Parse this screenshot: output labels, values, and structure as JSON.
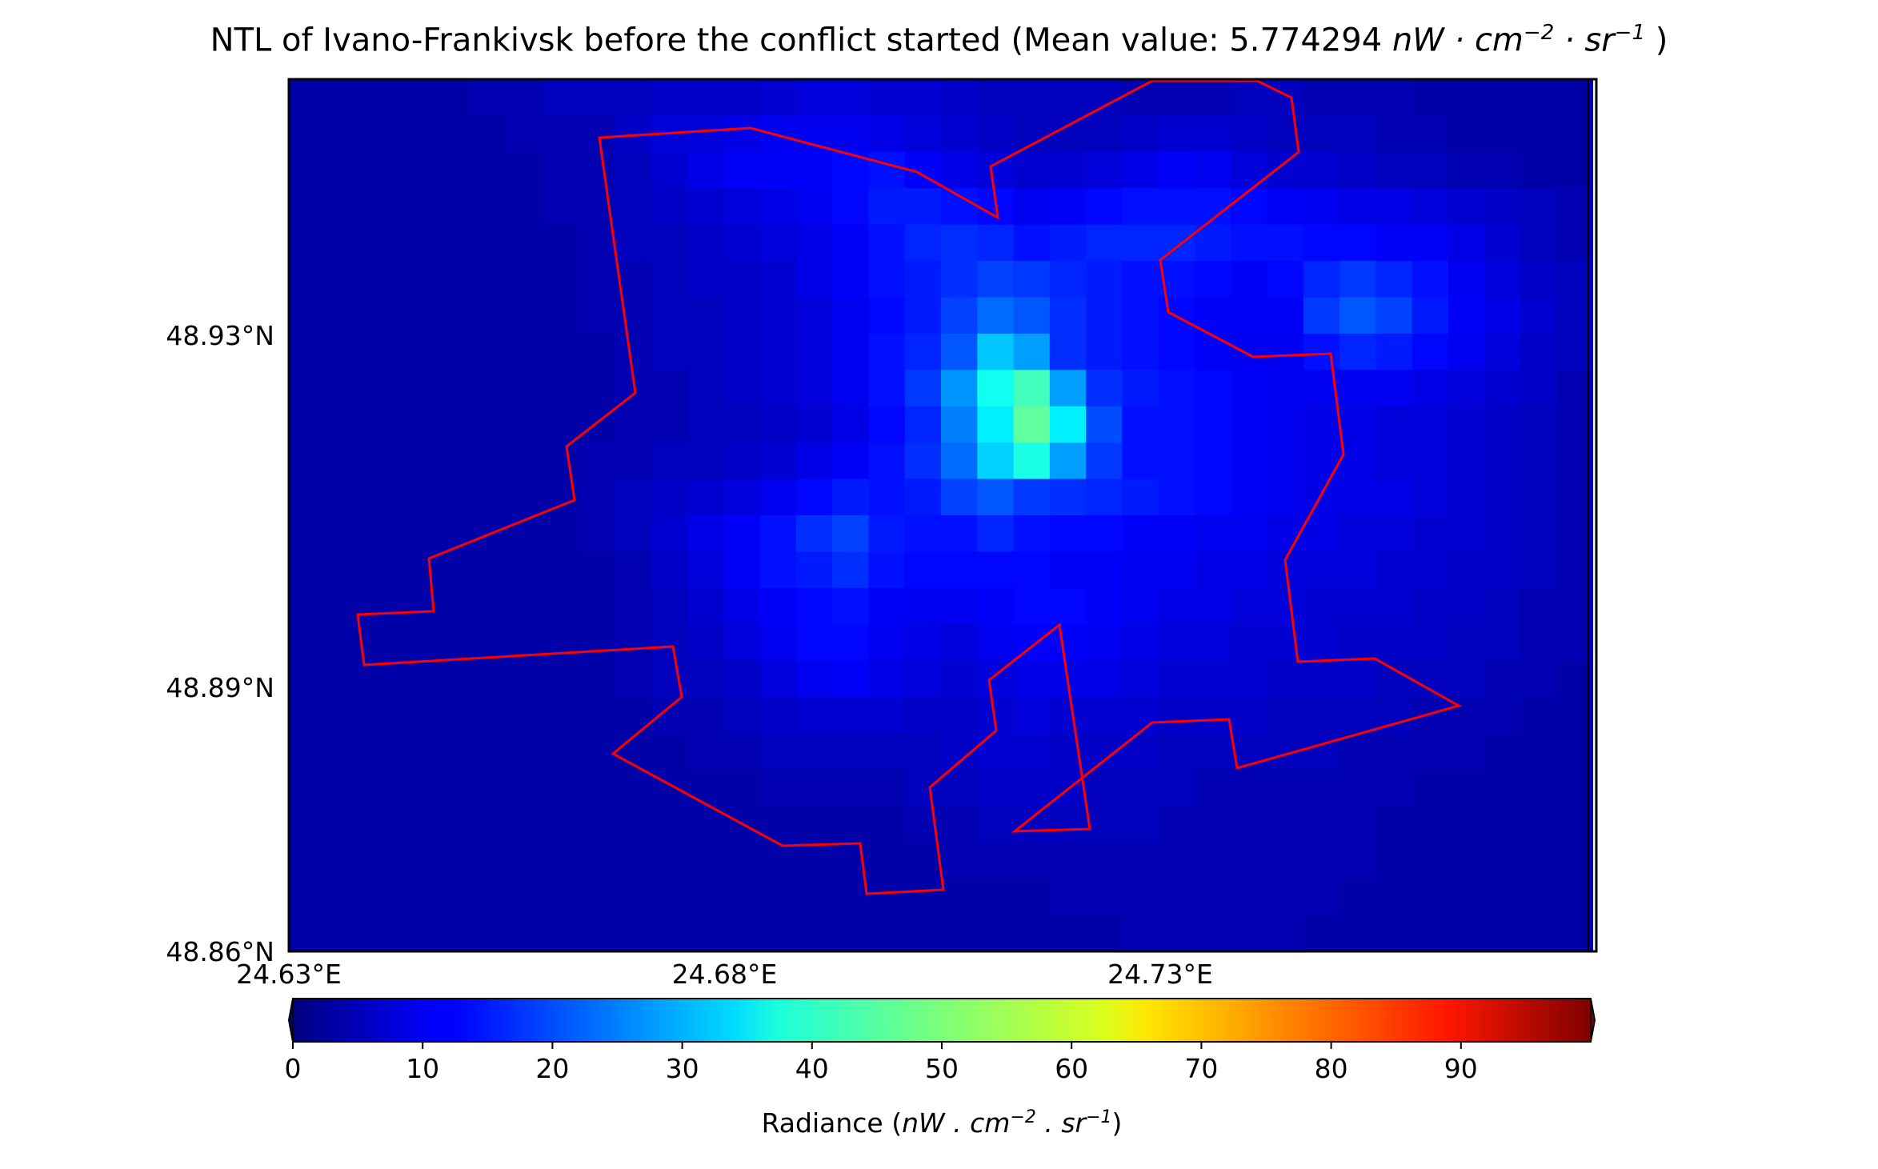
{
  "chart_data": {
    "type": "heatmap",
    "title_prefix": "NTL of Ivano-Frankivsk before the conflict started (Mean value: 5.774294 ",
    "title_unit": "nW · cm",
    "title_exp1": "−2",
    "title_mid": " · sr",
    "title_exp2": "−1",
    "title_suffix": " )",
    "colorbar": {
      "label_prefix": "Radiance (",
      "label_unit": "nW . cm",
      "label_exp1": "−2",
      "label_mid": " . sr",
      "label_exp2": "−1",
      "label_suffix": ")",
      "colormap": "jet",
      "range": [
        0,
        100
      ],
      "ticks": [
        0,
        10,
        20,
        30,
        40,
        50,
        60,
        70,
        80,
        90
      ],
      "extend": "both"
    },
    "x_ticks": [
      {
        "value": 24.63,
        "label": "24.63°E"
      },
      {
        "value": 24.68,
        "label": "24.68°E"
      },
      {
        "value": 24.73,
        "label": "24.73°E"
      }
    ],
    "y_ticks": [
      {
        "value": 48.93,
        "label": "48.93°N"
      },
      {
        "value": 48.89,
        "label": "48.89°N"
      },
      {
        "value": 48.86,
        "label": "48.86°N"
      }
    ],
    "grid": false,
    "legend": "none",
    "boundary_color": "#ff0000",
    "cell_grid": {
      "rows": 24,
      "cols": 36
    },
    "values": [
      [
        4,
        4,
        4,
        4,
        4,
        5,
        5,
        6,
        6,
        6,
        7,
        7,
        7,
        8,
        9,
        9,
        8,
        8,
        7,
        6,
        6,
        6,
        6,
        5,
        5,
        5,
        6,
        6,
        5,
        5,
        5,
        4,
        4,
        4,
        4,
        4
      ],
      [
        4,
        4,
        4,
        4,
        4,
        4,
        5,
        5,
        5,
        7,
        9,
        9,
        10,
        11,
        11,
        11,
        10,
        9,
        8,
        7,
        6,
        6,
        6,
        7,
        8,
        8,
        7,
        6,
        6,
        6,
        5,
        5,
        4,
        4,
        4,
        4
      ],
      [
        4,
        4,
        4,
        4,
        4,
        4,
        4,
        5,
        5,
        6,
        8,
        10,
        12,
        12,
        12,
        13,
        14,
        12,
        10,
        9,
        8,
        8,
        9,
        10,
        12,
        11,
        9,
        8,
        8,
        7,
        6,
        6,
        5,
        5,
        4,
        4
      ],
      [
        4,
        4,
        4,
        4,
        4,
        4,
        4,
        5,
        5,
        6,
        7,
        8,
        9,
        10,
        11,
        13,
        15,
        15,
        14,
        13,
        11,
        12,
        13,
        14,
        14,
        14,
        13,
        12,
        11,
        10,
        10,
        9,
        8,
        7,
        6,
        5
      ],
      [
        4,
        4,
        4,
        4,
        4,
        4,
        4,
        4,
        5,
        6,
        6,
        7,
        8,
        9,
        10,
        12,
        14,
        16,
        17,
        16,
        14,
        15,
        16,
        16,
        16,
        15,
        14,
        14,
        13,
        13,
        12,
        12,
        10,
        8,
        6,
        5
      ],
      [
        4,
        4,
        4,
        4,
        4,
        4,
        4,
        4,
        5,
        5,
        6,
        7,
        7,
        8,
        10,
        12,
        14,
        15,
        17,
        19,
        18,
        16,
        15,
        14,
        14,
        13,
        12,
        13,
        16,
        18,
        16,
        14,
        11,
        9,
        7,
        6
      ],
      [
        4,
        4,
        4,
        4,
        4,
        4,
        4,
        4,
        5,
        5,
        6,
        6,
        7,
        8,
        9,
        11,
        13,
        15,
        19,
        23,
        21,
        17,
        15,
        14,
        13,
        12,
        12,
        12,
        18,
        21,
        19,
        15,
        12,
        10,
        8,
        6
      ],
      [
        4,
        4,
        4,
        4,
        4,
        4,
        4,
        4,
        4,
        5,
        6,
        6,
        7,
        8,
        9,
        11,
        14,
        16,
        21,
        32,
        28,
        17,
        15,
        14,
        13,
        12,
        11,
        11,
        14,
        16,
        15,
        13,
        11,
        9,
        7,
        6
      ],
      [
        4,
        4,
        4,
        4,
        4,
        4,
        4,
        4,
        4,
        5,
        5,
        6,
        7,
        8,
        9,
        11,
        14,
        18,
        27,
        39,
        44,
        28,
        17,
        15,
        14,
        13,
        12,
        11,
        11,
        11,
        11,
        10,
        9,
        8,
        7,
        5
      ],
      [
        4,
        4,
        4,
        4,
        4,
        4,
        4,
        4,
        4,
        5,
        5,
        6,
        6,
        7,
        8,
        10,
        13,
        16,
        25,
        36,
        47,
        36,
        20,
        14,
        14,
        13,
        12,
        11,
        10,
        10,
        9,
        9,
        8,
        7,
        6,
        5
      ],
      [
        4,
        4,
        4,
        4,
        4,
        4,
        4,
        4,
        5,
        5,
        6,
        6,
        7,
        8,
        10,
        12,
        14,
        17,
        23,
        33,
        40,
        28,
        18,
        14,
        14,
        13,
        12,
        11,
        10,
        10,
        9,
        9,
        8,
        7,
        6,
        5
      ],
      [
        4,
        4,
        4,
        4,
        4,
        4,
        4,
        4,
        5,
        6,
        7,
        8,
        9,
        11,
        13,
        15,
        14,
        15,
        19,
        21,
        18,
        17,
        16,
        15,
        14,
        13,
        12,
        11,
        10,
        10,
        10,
        9,
        8,
        7,
        6,
        5
      ],
      [
        4,
        4,
        4,
        4,
        4,
        4,
        4,
        4,
        5,
        6,
        8,
        10,
        12,
        14,
        17,
        19,
        15,
        14,
        14,
        16,
        14,
        13,
        13,
        12,
        12,
        11,
        11,
        10,
        10,
        9,
        9,
        8,
        8,
        7,
        6,
        5
      ],
      [
        4,
        4,
        4,
        4,
        4,
        4,
        4,
        4,
        4,
        5,
        7,
        9,
        12,
        14,
        15,
        17,
        14,
        13,
        13,
        13,
        13,
        12,
        12,
        11,
        11,
        10,
        10,
        9,
        9,
        9,
        8,
        8,
        7,
        7,
        6,
        5
      ],
      [
        4,
        4,
        4,
        4,
        4,
        4,
        4,
        4,
        4,
        5,
        6,
        8,
        10,
        12,
        13,
        14,
        12,
        11,
        11,
        12,
        13,
        13,
        12,
        11,
        10,
        10,
        9,
        9,
        8,
        8,
        8,
        7,
        7,
        6,
        5,
        5
      ],
      [
        4,
        4,
        4,
        4,
        4,
        4,
        4,
        4,
        4,
        5,
        6,
        7,
        9,
        11,
        13,
        13,
        11,
        10,
        9,
        11,
        12,
        12,
        11,
        10,
        9,
        9,
        8,
        8,
        8,
        7,
        7,
        7,
        6,
        6,
        5,
        5
      ],
      [
        4,
        4,
        4,
        4,
        4,
        4,
        4,
        4,
        4,
        5,
        6,
        6,
        7,
        9,
        11,
        12,
        10,
        9,
        8,
        9,
        10,
        10,
        10,
        9,
        8,
        8,
        8,
        7,
        7,
        7,
        6,
        6,
        6,
        5,
        5,
        4
      ],
      [
        4,
        4,
        4,
        4,
        4,
        4,
        4,
        4,
        4,
        4,
        5,
        5,
        6,
        7,
        8,
        8,
        8,
        7,
        7,
        8,
        9,
        8,
        8,
        8,
        7,
        7,
        7,
        6,
        6,
        6,
        6,
        5,
        5,
        5,
        4,
        4
      ],
      [
        4,
        4,
        4,
        4,
        4,
        4,
        4,
        4,
        4,
        4,
        4,
        5,
        5,
        6,
        6,
        6,
        6,
        6,
        7,
        8,
        8,
        7,
        7,
        7,
        6,
        6,
        6,
        6,
        6,
        5,
        5,
        5,
        5,
        4,
        4,
        4
      ],
      [
        4,
        4,
        4,
        4,
        4,
        4,
        4,
        4,
        4,
        4,
        4,
        4,
        4,
        5,
        5,
        5,
        5,
        6,
        6,
        7,
        7,
        7,
        6,
        6,
        6,
        5,
        5,
        5,
        5,
        5,
        5,
        4,
        4,
        4,
        4,
        4
      ],
      [
        4,
        4,
        4,
        4,
        4,
        4,
        4,
        4,
        4,
        4,
        4,
        4,
        4,
        4,
        4,
        4,
        4,
        5,
        5,
        6,
        6,
        6,
        6,
        6,
        5,
        5,
        5,
        5,
        5,
        5,
        4,
        4,
        4,
        4,
        4,
        4
      ],
      [
        4,
        4,
        4,
        4,
        4,
        4,
        4,
        4,
        4,
        4,
        4,
        4,
        4,
        4,
        4,
        4,
        4,
        4,
        5,
        5,
        5,
        5,
        5,
        5,
        5,
        5,
        5,
        5,
        5,
        5,
        4,
        4,
        4,
        4,
        4,
        4
      ],
      [
        4,
        4,
        4,
        4,
        4,
        4,
        4,
        4,
        4,
        4,
        4,
        4,
        4,
        4,
        4,
        4,
        4,
        4,
        4,
        4,
        4,
        5,
        5,
        5,
        5,
        5,
        5,
        5,
        5,
        4,
        4,
        4,
        4,
        4,
        4,
        4
      ],
      [
        4,
        4,
        4,
        4,
        4,
        4,
        4,
        4,
        4,
        4,
        4,
        4,
        4,
        4,
        4,
        4,
        4,
        4,
        4,
        4,
        4,
        4,
        4,
        5,
        5,
        5,
        5,
        5,
        4,
        4,
        4,
        4,
        4,
        4,
        4,
        4
      ]
    ]
  }
}
